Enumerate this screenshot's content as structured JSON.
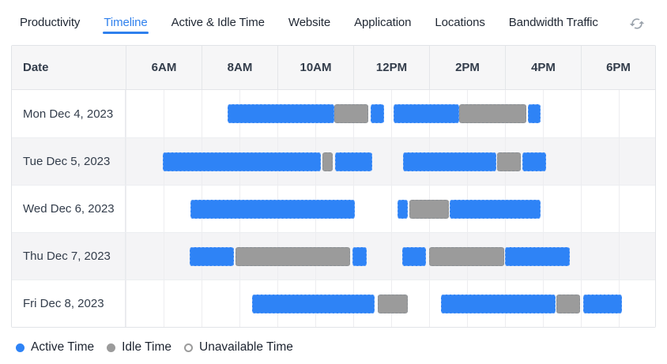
{
  "tabs": [
    {
      "label": "Productivity",
      "active": false
    },
    {
      "label": "Timeline",
      "active": true
    },
    {
      "label": "Active & Idle Time",
      "active": false
    },
    {
      "label": "Website",
      "active": false
    },
    {
      "label": "Application",
      "active": false
    },
    {
      "label": "Locations",
      "active": false
    },
    {
      "label": "Bandwidth Traffic",
      "active": false
    }
  ],
  "refresh_icon": "sync-refresh",
  "colors": {
    "active_time": "#2e83f6",
    "idle_time": "#9b9b9b",
    "accent_tab": "#2f80ed"
  },
  "chart_data": {
    "type": "timeline-gantt",
    "date_column_header": "Date",
    "time_ticks": [
      "6AM",
      "8AM",
      "10AM",
      "12PM",
      "2PM",
      "4PM",
      "6PM"
    ],
    "axis_start_hour": 5,
    "axis_end_hour": 19,
    "legend": [
      {
        "label": "Active Time",
        "swatch": "active"
      },
      {
        "label": "Idle Time",
        "swatch": "idle"
      },
      {
        "label": "Unavailable Time",
        "swatch": "unavailable"
      }
    ],
    "rows": [
      {
        "date": "Mon Dec 4, 2023",
        "segments": [
          {
            "type": "active",
            "start": 7.69,
            "end": 10.5
          },
          {
            "type": "idle",
            "start": 10.5,
            "end": 11.4
          },
          {
            "type": "active",
            "start": 11.46,
            "end": 11.81
          },
          {
            "type": "active",
            "start": 12.06,
            "end": 13.79
          },
          {
            "type": "idle",
            "start": 13.79,
            "end": 15.56
          },
          {
            "type": "active",
            "start": 15.6,
            "end": 15.94
          }
        ]
      },
      {
        "date": "Tue Dec 5, 2023",
        "segments": [
          {
            "type": "active",
            "start": 5.98,
            "end": 10.15
          },
          {
            "type": "idle",
            "start": 10.19,
            "end": 10.46
          },
          {
            "type": "active",
            "start": 10.52,
            "end": 11.5
          },
          {
            "type": "active",
            "start": 12.31,
            "end": 14.77
          },
          {
            "type": "idle",
            "start": 14.79,
            "end": 15.42
          },
          {
            "type": "active",
            "start": 15.46,
            "end": 16.08
          }
        ]
      },
      {
        "date": "Wed Dec 6, 2023",
        "segments": [
          {
            "type": "active",
            "start": 6.71,
            "end": 11.04
          },
          {
            "type": "active",
            "start": 12.17,
            "end": 12.44
          },
          {
            "type": "idle",
            "start": 12.48,
            "end": 13.52
          },
          {
            "type": "active",
            "start": 13.54,
            "end": 15.94
          }
        ]
      },
      {
        "date": "Thu Dec 7, 2023",
        "segments": [
          {
            "type": "active",
            "start": 6.69,
            "end": 7.85
          },
          {
            "type": "idle",
            "start": 7.9,
            "end": 10.92
          },
          {
            "type": "active",
            "start": 10.98,
            "end": 11.35
          },
          {
            "type": "active",
            "start": 12.29,
            "end": 12.92
          },
          {
            "type": "idle",
            "start": 13.0,
            "end": 14.98
          },
          {
            "type": "active",
            "start": 15.0,
            "end": 16.71
          }
        ]
      },
      {
        "date": "Fri Dec 8, 2023",
        "segments": [
          {
            "type": "active",
            "start": 8.33,
            "end": 11.56
          },
          {
            "type": "idle",
            "start": 11.65,
            "end": 12.44
          },
          {
            "type": "active",
            "start": 13.31,
            "end": 16.33
          },
          {
            "type": "idle",
            "start": 16.35,
            "end": 16.98
          },
          {
            "type": "active",
            "start": 17.06,
            "end": 18.08
          }
        ]
      }
    ]
  }
}
